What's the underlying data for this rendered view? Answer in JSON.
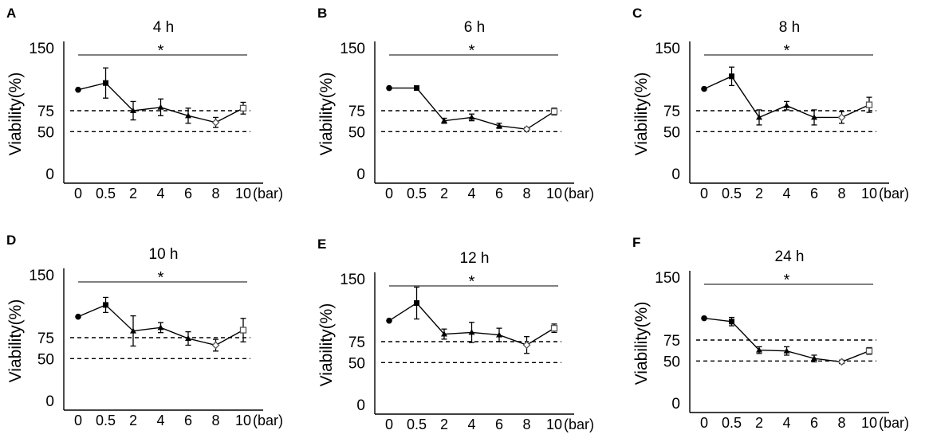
{
  "chart_data": [
    {
      "type": "line",
      "panel": "A",
      "title": "4 h",
      "ylabel": "Viability(%)",
      "xunit": "(bar)",
      "categories": [
        "0",
        "0.5",
        "2",
        "4",
        "6",
        "8",
        "10"
      ],
      "yticks": [
        "150",
        "75",
        "50",
        "0"
      ],
      "ylim": [
        0,
        150
      ],
      "reference_lines": [
        75,
        50
      ],
      "significance": "*",
      "values": [
        100,
        108,
        75,
        79,
        69,
        61,
        78
      ],
      "errors": [
        0,
        18,
        11,
        10,
        9,
        6,
        7
      ],
      "markers": [
        "circle",
        "square",
        "triangle",
        "triangle",
        "triangle",
        "diamond",
        "open-square"
      ]
    },
    {
      "type": "line",
      "panel": "B",
      "title": "6 h",
      "ylabel": "Viability(%)",
      "xunit": "(bar)",
      "categories": [
        "0",
        "0.5",
        "2",
        "4",
        "6",
        "8",
        "10"
      ],
      "yticks": [
        "150",
        "75",
        "50",
        "0"
      ],
      "ylim": [
        0,
        150
      ],
      "reference_lines": [
        75,
        50
      ],
      "significance": "*",
      "values": [
        102,
        102,
        63,
        67,
        57,
        53,
        74
      ],
      "errors": [
        0,
        1,
        3,
        4,
        3,
        2,
        4
      ],
      "markers": [
        "circle",
        "square",
        "triangle",
        "triangle",
        "triangle",
        "diamond",
        "open-square"
      ]
    },
    {
      "type": "line",
      "panel": "C",
      "title": "8 h",
      "ylabel": "Viability(%)",
      "xunit": "(bar)",
      "categories": [
        "0",
        "0.5",
        "2",
        "4",
        "6",
        "8",
        "10"
      ],
      "yticks": [
        "150",
        "75",
        "50",
        "0"
      ],
      "ylim": [
        0,
        150
      ],
      "reference_lines": [
        75,
        50
      ],
      "significance": "*",
      "values": [
        101,
        116,
        67,
        81,
        67,
        67,
        82
      ],
      "errors": [
        0,
        11,
        9,
        5,
        9,
        7,
        9
      ],
      "markers": [
        "circle",
        "square",
        "triangle",
        "triangle",
        "triangle",
        "diamond",
        "open-square"
      ]
    },
    {
      "type": "line",
      "panel": "D",
      "title": "10 h",
      "ylabel": "Viability(%)",
      "xunit": "(bar)",
      "categories": [
        "0",
        "0.5",
        "2",
        "4",
        "6",
        "8",
        "10"
      ],
      "yticks": [
        "150",
        "75",
        "50",
        "0"
      ],
      "ylim": [
        0,
        150
      ],
      "reference_lines": [
        75,
        50
      ],
      "significance": "*",
      "values": [
        100,
        114,
        83,
        87,
        74,
        66,
        84
      ],
      "errors": [
        0,
        9,
        18,
        6,
        8,
        7,
        14
      ],
      "markers": [
        "circle",
        "square",
        "triangle",
        "triangle",
        "triangle",
        "diamond",
        "open-square"
      ]
    },
    {
      "type": "line",
      "panel": "E",
      "title": "12 h",
      "ylabel": "Viability(%)",
      "xunit": "(bar)",
      "categories": [
        "0",
        "0.5",
        "2",
        "4",
        "6",
        "8",
        "10"
      ],
      "yticks": [
        "150",
        "75",
        "50",
        "0"
      ],
      "ylim": [
        0,
        150
      ],
      "reference_lines": [
        75,
        50
      ],
      "significance": "*",
      "values": [
        100,
        121,
        84,
        86,
        83,
        71,
        91
      ],
      "errors": [
        0,
        19,
        6,
        12,
        8,
        10,
        5
      ],
      "markers": [
        "circle",
        "square",
        "triangle",
        "triangle",
        "triangle",
        "diamond",
        "open-square"
      ]
    },
    {
      "type": "line",
      "panel": "F",
      "title": "24 h",
      "ylabel": "Viability(%)",
      "xunit": "(bar)",
      "categories": [
        "0",
        "0.5",
        "2",
        "4",
        "6",
        "8",
        "10"
      ],
      "yticks": [
        "150",
        "75",
        "50",
        "0"
      ],
      "ylim": [
        0,
        150
      ],
      "reference_lines": [
        75,
        50
      ],
      "significance": "*",
      "values": [
        101,
        97,
        63,
        62,
        53,
        49,
        62
      ],
      "errors": [
        0,
        5,
        4,
        5,
        4,
        2,
        4
      ],
      "markers": [
        "circle",
        "square",
        "triangle",
        "triangle",
        "triangle",
        "diamond",
        "open-square"
      ]
    }
  ]
}
